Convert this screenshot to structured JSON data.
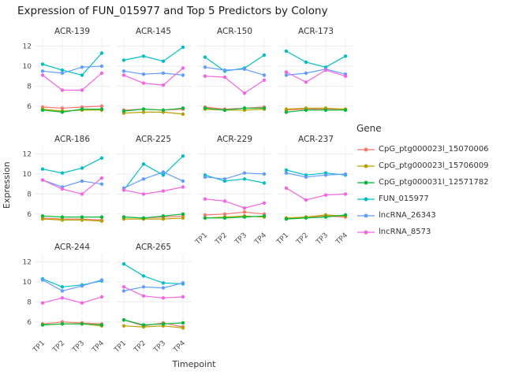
{
  "chart_data": {
    "type": "line",
    "title": "Expression of FUN_015977 and Top 5 Predictors by Colony",
    "xlabel": "Timepoint",
    "ylabel": "Expression",
    "legend_title": "Gene",
    "legend_position": "right",
    "grid": true,
    "x": [
      "TP1",
      "TP2",
      "TP3",
      "TP4"
    ],
    "yticks": [
      6,
      8,
      10,
      12
    ],
    "ylim": [
      4.8,
      12.6
    ],
    "series": [
      {
        "name": "CpG_ptg000023l_15070006",
        "color": "#F8766D"
      },
      {
        "name": "CpG_ptg000023l_15706009",
        "color": "#B79F00"
      },
      {
        "name": "CpG_ptg000031l_12571782",
        "color": "#00BA38"
      },
      {
        "name": "FUN_015977",
        "color": "#00BFC4"
      },
      {
        "name": "lncRNA_26343",
        "color": "#619CFF"
      },
      {
        "name": "lncRNA_8573",
        "color": "#F564E2"
      }
    ],
    "facets": [
      {
        "colony": "ACR-139",
        "values": [
          [
            5.9,
            5.8,
            5.9,
            6.0
          ],
          [
            5.7,
            5.5,
            5.6,
            5.6
          ],
          [
            5.6,
            5.4,
            5.7,
            5.7
          ],
          [
            10.2,
            9.6,
            9.1,
            11.3
          ],
          [
            9.5,
            9.3,
            9.9,
            10.0
          ],
          [
            9.1,
            7.6,
            7.6,
            9.3
          ]
        ]
      },
      {
        "colony": "ACR-145",
        "values": [
          [
            5.6,
            5.7,
            5.6,
            5.7
          ],
          [
            5.3,
            5.4,
            5.4,
            5.2
          ],
          [
            5.5,
            5.7,
            5.6,
            5.8
          ],
          [
            10.6,
            11.0,
            10.5,
            11.9
          ],
          [
            9.5,
            9.2,
            9.3,
            9.1
          ],
          [
            9.1,
            8.3,
            8.1,
            9.8
          ]
        ]
      },
      {
        "colony": "ACR-150",
        "values": [
          [
            5.9,
            5.7,
            5.8,
            5.9
          ],
          [
            5.7,
            5.6,
            5.6,
            5.7
          ],
          [
            5.8,
            5.6,
            5.8,
            5.8
          ],
          [
            10.9,
            9.5,
            9.8,
            11.1
          ],
          [
            9.9,
            9.6,
            9.7,
            9.1
          ],
          [
            9.0,
            8.9,
            7.3,
            8.6
          ]
        ]
      },
      {
        "colony": "ACR-173",
        "values": [
          [
            5.6,
            5.7,
            5.7,
            5.6
          ],
          [
            5.7,
            5.8,
            5.8,
            5.7
          ],
          [
            5.4,
            5.6,
            5.6,
            5.6
          ],
          [
            11.5,
            10.4,
            9.9,
            11.0
          ],
          [
            9.1,
            9.3,
            9.7,
            9.2
          ],
          [
            9.4,
            8.4,
            9.6,
            9.0
          ]
        ]
      },
      {
        "colony": "ACR-186",
        "values": [
          [
            5.6,
            5.5,
            5.5,
            5.4
          ],
          [
            5.5,
            5.4,
            5.4,
            5.3
          ],
          [
            5.8,
            5.7,
            5.7,
            5.7
          ],
          [
            10.5,
            10.1,
            10.6,
            11.6
          ],
          [
            9.4,
            8.7,
            9.3,
            9.0
          ],
          [
            9.4,
            8.5,
            8.0,
            9.6
          ]
        ]
      },
      {
        "colony": "ACR-225",
        "values": [
          [
            5.7,
            5.6,
            5.7,
            5.8
          ],
          [
            5.5,
            5.5,
            5.5,
            5.6
          ],
          [
            5.7,
            5.6,
            5.8,
            6.0
          ],
          [
            8.4,
            11.0,
            9.9,
            11.8
          ],
          [
            8.6,
            9.5,
            10.2,
            9.3
          ],
          [
            8.4,
            8.0,
            8.3,
            8.7
          ]
        ]
      },
      {
        "colony": "ACR-229",
        "values": [
          [
            5.9,
            6.0,
            6.2,
            6.0
          ],
          [
            5.6,
            5.7,
            5.8,
            5.7
          ],
          [
            5.6,
            5.6,
            5.7,
            5.8
          ],
          [
            9.9,
            9.3,
            9.5,
            9.1
          ],
          [
            9.7,
            9.5,
            10.1,
            10.0
          ],
          [
            7.5,
            7.3,
            6.6,
            7.1
          ]
        ]
      },
      {
        "colony": "ACR-237",
        "values": [
          [
            5.5,
            5.7,
            5.8,
            5.7
          ],
          [
            5.6,
            5.7,
            5.9,
            5.8
          ],
          [
            5.5,
            5.6,
            5.7,
            5.9
          ],
          [
            10.4,
            9.9,
            10.1,
            9.9
          ],
          [
            10.1,
            9.7,
            9.9,
            10.0
          ],
          [
            8.6,
            7.4,
            7.9,
            8.0
          ]
        ]
      },
      {
        "colony": "ACR-244",
        "values": [
          [
            5.8,
            6.0,
            5.9,
            5.8
          ],
          [
            5.7,
            5.8,
            5.8,
            5.6
          ],
          [
            5.7,
            5.8,
            5.8,
            5.7
          ],
          [
            10.3,
            9.5,
            9.7,
            10.1
          ],
          [
            10.2,
            9.1,
            9.6,
            10.2
          ],
          [
            7.9,
            8.4,
            7.9,
            8.5
          ]
        ]
      },
      {
        "colony": "ACR-265",
        "values": [
          [
            6.2,
            5.6,
            5.9,
            5.5
          ],
          [
            5.6,
            5.5,
            5.6,
            5.4
          ],
          [
            6.2,
            5.7,
            5.8,
            5.9
          ],
          [
            11.8,
            10.6,
            9.9,
            9.8
          ],
          [
            9.1,
            9.5,
            9.4,
            9.9
          ],
          [
            9.5,
            8.6,
            8.4,
            8.5
          ]
        ]
      }
    ]
  }
}
